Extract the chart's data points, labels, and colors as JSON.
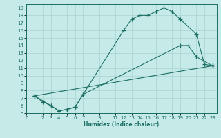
{
  "xlabel": "Humidex (Indice chaleur)",
  "ylabel": "",
  "bg_color": "#c6eae7",
  "grid_color": "#a8d4d0",
  "line_color": "#1a6e64",
  "xlim": [
    0,
    23.5
  ],
  "ylim": [
    5,
    19.5
  ],
  "xticks": [
    0,
    2,
    3,
    4,
    5,
    6,
    7,
    9,
    11,
    12,
    13,
    14,
    15,
    16,
    17,
    18,
    19,
    20,
    21,
    22,
    23
  ],
  "yticks": [
    5,
    6,
    7,
    8,
    9,
    10,
    11,
    12,
    13,
    14,
    15,
    16,
    17,
    18,
    19
  ],
  "line1_x": [
    1,
    2,
    3,
    4,
    5,
    6,
    7,
    12,
    13,
    14,
    15,
    16,
    17,
    18,
    19,
    21,
    22,
    23
  ],
  "line1_y": [
    7.3,
    6.5,
    6.0,
    5.3,
    5.5,
    5.8,
    7.5,
    16.0,
    17.5,
    18.0,
    18.0,
    18.5,
    19.0,
    18.5,
    17.5,
    15.5,
    11.5,
    11.3
  ],
  "line2_x": [
    1,
    3,
    4,
    5,
    6,
    7,
    19,
    20,
    21,
    23
  ],
  "line2_y": [
    7.3,
    6.0,
    5.3,
    5.5,
    5.8,
    7.5,
    14.0,
    14.0,
    12.5,
    11.3
  ],
  "line3_x": [
    1,
    23
  ],
  "line3_y": [
    7.3,
    11.3
  ]
}
